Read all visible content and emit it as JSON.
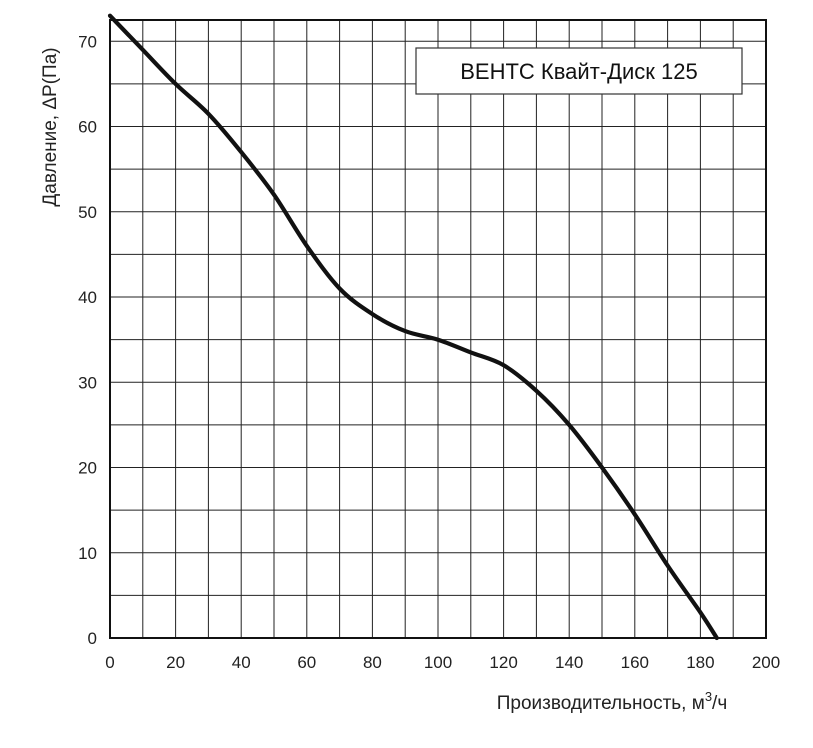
{
  "chart_data": {
    "type": "line",
    "title": "ВЕНТС Квайт-Диск 125",
    "xlabel": "Производительность, м",
    "xlabel_sup": "3",
    "xlabel_tail": "/ч",
    "ylabel": "Давление, ΔP(Па)",
    "xlim": [
      0,
      200
    ],
    "ylim": [
      0,
      75
    ],
    "x_ticks": [
      0,
      20,
      40,
      60,
      80,
      100,
      120,
      140,
      160,
      180,
      200
    ],
    "y_ticks": [
      0,
      10,
      20,
      30,
      40,
      50,
      60,
      70
    ],
    "x_minor_step": 10,
    "y_minor_step": 5,
    "grid": true,
    "legend": "top-right",
    "series": [
      {
        "x": [
          0,
          10,
          20,
          30,
          40,
          50,
          60,
          70,
          80,
          90,
          100,
          110,
          120,
          130,
          140,
          150,
          160,
          170,
          180,
          185
        ],
        "y": [
          73,
          69,
          65,
          61.5,
          57,
          52,
          46,
          41,
          38,
          36,
          35,
          33.5,
          32,
          29,
          25,
          20,
          14.5,
          8.5,
          3,
          0
        ]
      }
    ],
    "line_color": "#111111"
  }
}
